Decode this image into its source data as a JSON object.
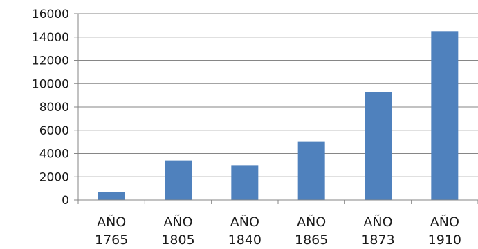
{
  "chart_data": {
    "type": "bar",
    "categories": [
      [
        "AÑO",
        "1765"
      ],
      [
        "AÑO",
        "1805"
      ],
      [
        "AÑO",
        "1840"
      ],
      [
        "AÑO",
        "1865"
      ],
      [
        "AÑO",
        "1873"
      ],
      [
        "AÑO",
        "1910"
      ]
    ],
    "values": [
      700,
      3400,
      3000,
      5000,
      9300,
      14500
    ],
    "ylim": [
      0,
      16000
    ],
    "yticks": [
      "0",
      "2000",
      "4000",
      "6000",
      "8000",
      "10000",
      "12000",
      "14000",
      "16000"
    ],
    "grid": true,
    "legend": "none",
    "colors": {
      "bar": "#4f81bd",
      "grid": "#868686",
      "axis": "#868686"
    }
  }
}
